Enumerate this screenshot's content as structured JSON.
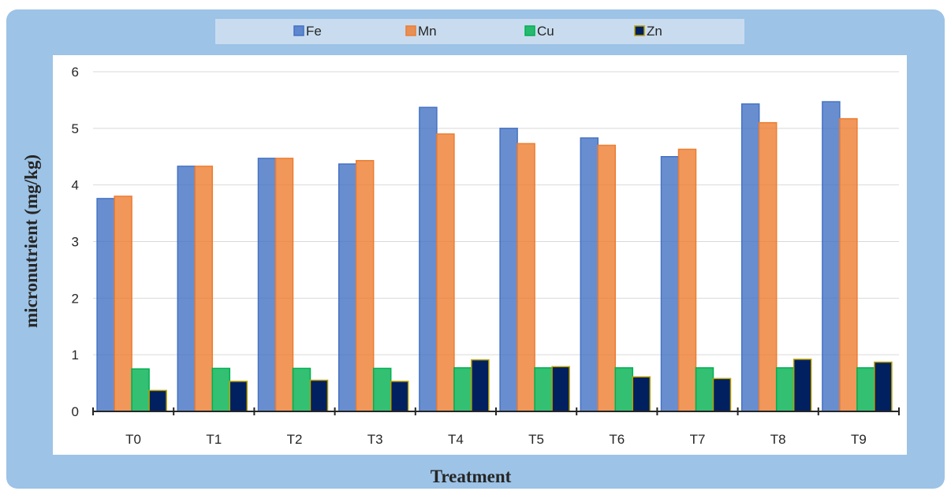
{
  "chart_data": {
    "type": "bar",
    "title": "",
    "xlabel": "Treatment",
    "ylabel": "micronutrient (mg/kg)",
    "ylim": [
      0,
      6
    ],
    "yticks": [
      0,
      1,
      2,
      3,
      4,
      5,
      6
    ],
    "grid": true,
    "legend_position": "top",
    "categories": [
      "T0",
      "T1",
      "T2",
      "T3",
      "T4",
      "T5",
      "T6",
      "T7",
      "T8",
      "T9"
    ],
    "series": [
      {
        "name": "Fe",
        "color": "#4472c4",
        "values": [
          3.76,
          4.33,
          4.47,
          4.37,
          5.37,
          5.0,
          4.83,
          4.5,
          5.43,
          5.47
        ]
      },
      {
        "name": "Mn",
        "color": "#ed7d31",
        "values": [
          3.8,
          4.33,
          4.47,
          4.43,
          4.9,
          4.73,
          4.7,
          4.63,
          5.1,
          5.17
        ]
      },
      {
        "name": "Cu",
        "color": "#00b050",
        "values": [
          0.75,
          0.76,
          0.76,
          0.76,
          0.77,
          0.77,
          0.77,
          0.77,
          0.77,
          0.77
        ]
      },
      {
        "name": "Zn",
        "color": "#002060",
        "values": [
          0.37,
          0.53,
          0.55,
          0.53,
          0.91,
          0.79,
          0.61,
          0.58,
          0.92,
          0.87
        ]
      }
    ]
  }
}
